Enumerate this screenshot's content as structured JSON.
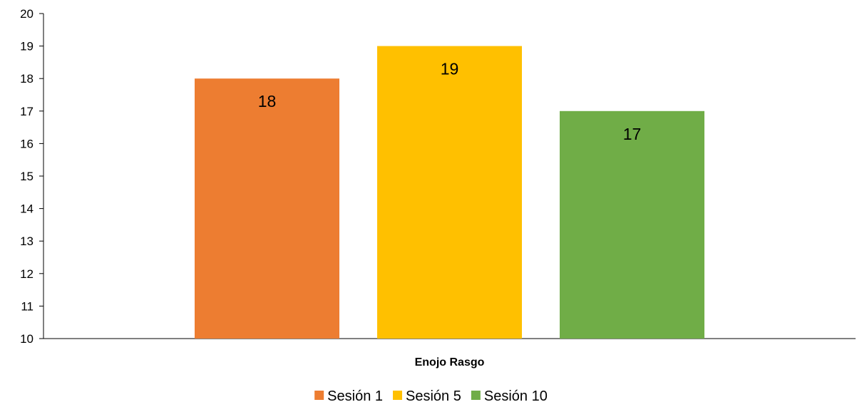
{
  "chart_data": {
    "type": "bar",
    "title": "",
    "xlabel": "",
    "ylabel": "",
    "categories": [
      "Enojo Rasgo"
    ],
    "series": [
      {
        "name": "Sesión 1",
        "values": [
          18
        ],
        "color": "#ED7D31"
      },
      {
        "name": "Sesión 5",
        "values": [
          19
        ],
        "color": "#FFC000"
      },
      {
        "name": "Sesión 10",
        "values": [
          17
        ],
        "color": "#70AD47"
      }
    ],
    "ylim": [
      10,
      20
    ],
    "yticks": [
      10,
      11,
      12,
      13,
      14,
      15,
      16,
      17,
      18,
      19,
      20
    ],
    "grid": false,
    "legend": "bottom-center",
    "data_labels": "inside-top"
  }
}
